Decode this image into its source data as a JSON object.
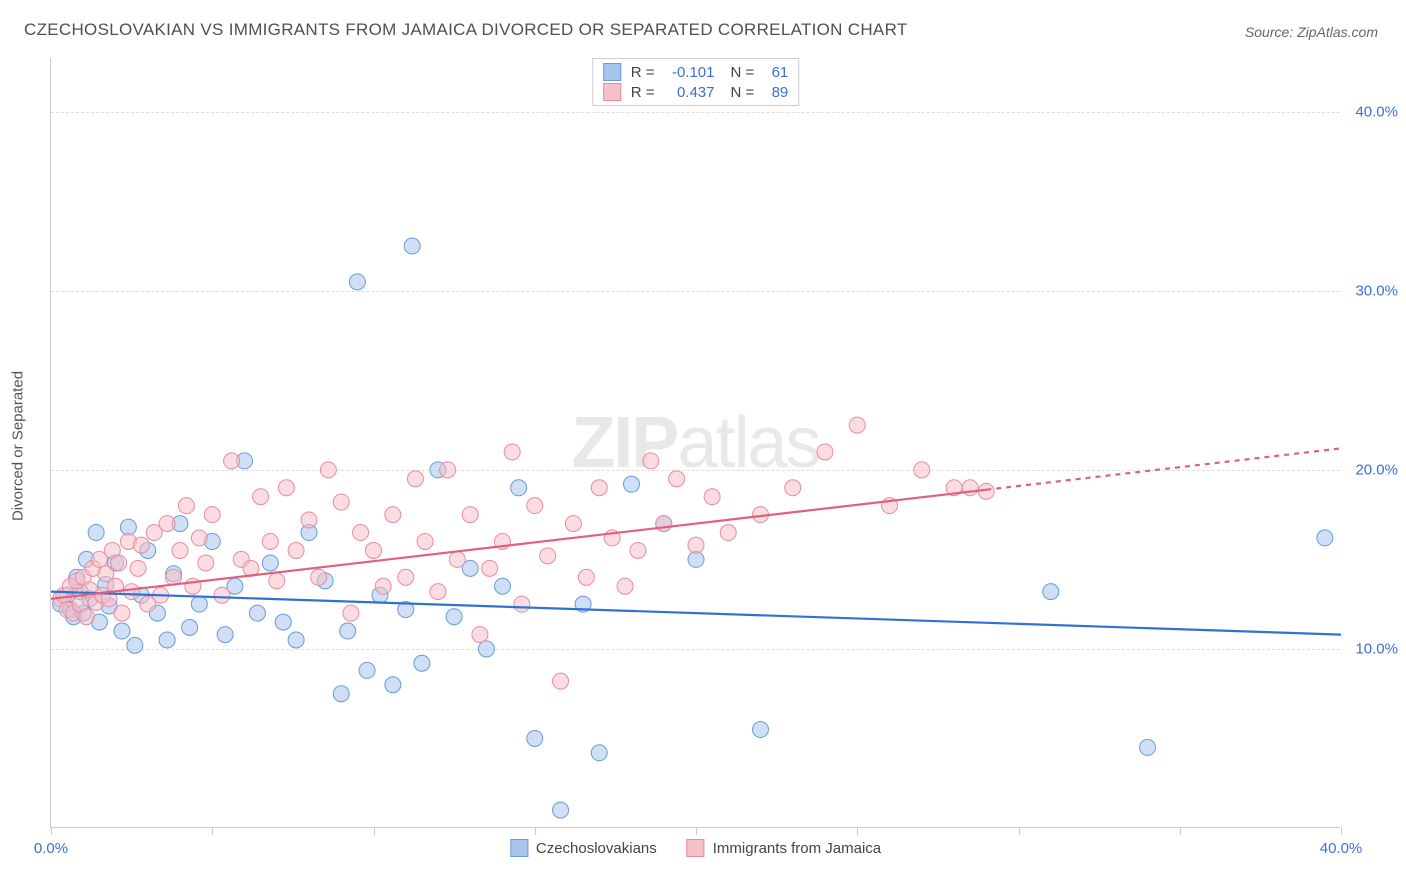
{
  "title": "CZECHOSLOVAKIAN VS IMMIGRANTS FROM JAMAICA DIVORCED OR SEPARATED CORRELATION CHART",
  "source": "Source: ZipAtlas.com",
  "watermark": {
    "bold": "ZIP",
    "light": "atlas"
  },
  "yaxis_label": "Divorced or Separated",
  "chart": {
    "type": "scatter",
    "xlim": [
      0,
      40
    ],
    "ylim": [
      0,
      43
    ],
    "xtick_positions": [
      0,
      5,
      10,
      15,
      20,
      25,
      30,
      35,
      40
    ],
    "xtick_labels": {
      "0": "0.0%",
      "40": "40.0%"
    },
    "gridlines_y": [
      10,
      20,
      30,
      40
    ],
    "ytick_labels": {
      "10": "10.0%",
      "20": "20.0%",
      "30": "30.0%",
      "40": "40.0%"
    },
    "background_color": "#ffffff",
    "grid_color": "#dddddd",
    "axis_color": "#cccccc",
    "tick_label_color": "#3b6fd6",
    "marker_radius": 8,
    "marker_opacity": 0.55,
    "series": [
      {
        "id": "czech",
        "name": "Czechoslovakians",
        "color_fill": "#a8c5ed",
        "color_stroke": "#6a9bd8",
        "R": "-0.101",
        "N": "61",
        "trend": {
          "x1": 0,
          "y1": 13.2,
          "x2": 40,
          "y2": 10.8,
          "color": "#2f72d6",
          "width": 2.2,
          "solid_until_x": 40
        },
        "points": [
          [
            0.3,
            12.5
          ],
          [
            0.5,
            13.0
          ],
          [
            0.6,
            12.2
          ],
          [
            0.7,
            11.8
          ],
          [
            0.8,
            14.0
          ],
          [
            0.9,
            13.2
          ],
          [
            1.0,
            12.0
          ],
          [
            1.1,
            15.0
          ],
          [
            1.2,
            12.8
          ],
          [
            1.4,
            16.5
          ],
          [
            1.5,
            11.5
          ],
          [
            1.7,
            13.6
          ],
          [
            1.8,
            12.4
          ],
          [
            2.0,
            14.8
          ],
          [
            2.2,
            11.0
          ],
          [
            2.4,
            16.8
          ],
          [
            2.6,
            10.2
          ],
          [
            2.8,
            13.0
          ],
          [
            3.0,
            15.5
          ],
          [
            3.3,
            12.0
          ],
          [
            3.6,
            10.5
          ],
          [
            3.8,
            14.2
          ],
          [
            4.0,
            17.0
          ],
          [
            4.3,
            11.2
          ],
          [
            4.6,
            12.5
          ],
          [
            5.0,
            16.0
          ],
          [
            5.4,
            10.8
          ],
          [
            5.7,
            13.5
          ],
          [
            6.0,
            20.5
          ],
          [
            6.4,
            12.0
          ],
          [
            6.8,
            14.8
          ],
          [
            7.2,
            11.5
          ],
          [
            7.6,
            10.5
          ],
          [
            8.0,
            16.5
          ],
          [
            8.5,
            13.8
          ],
          [
            9.0,
            7.5
          ],
          [
            9.2,
            11.0
          ],
          [
            9.5,
            30.5
          ],
          [
            9.8,
            8.8
          ],
          [
            10.2,
            13.0
          ],
          [
            10.6,
            8.0
          ],
          [
            11.0,
            12.2
          ],
          [
            11.2,
            32.5
          ],
          [
            11.5,
            9.2
          ],
          [
            12.0,
            20.0
          ],
          [
            12.5,
            11.8
          ],
          [
            13.0,
            14.5
          ],
          [
            13.5,
            10.0
          ],
          [
            14.0,
            13.5
          ],
          [
            14.5,
            19.0
          ],
          [
            15.0,
            5.0
          ],
          [
            15.8,
            1.0
          ],
          [
            16.5,
            12.5
          ],
          [
            17.0,
            4.2
          ],
          [
            18.0,
            19.2
          ],
          [
            19.0,
            17.0
          ],
          [
            22.0,
            5.5
          ],
          [
            31.0,
            13.2
          ],
          [
            34.0,
            4.5
          ],
          [
            39.5,
            16.2
          ],
          [
            20.0,
            15.0
          ]
        ]
      },
      {
        "id": "jamaica",
        "name": "Immigrants from Jamaica",
        "color_fill": "#f5c0c9",
        "color_stroke": "#e88ca0",
        "R": "0.437",
        "N": "89",
        "trend": {
          "x1": 0,
          "y1": 12.8,
          "x2": 40,
          "y2": 21.2,
          "color": "#e0607e",
          "width": 2.2,
          "solid_until_x": 29
        },
        "points": [
          [
            0.3,
            12.8
          ],
          [
            0.4,
            13.0
          ],
          [
            0.5,
            12.2
          ],
          [
            0.6,
            13.5
          ],
          [
            0.7,
            12.0
          ],
          [
            0.8,
            13.8
          ],
          [
            0.9,
            12.5
          ],
          [
            1.0,
            14.0
          ],
          [
            1.1,
            11.8
          ],
          [
            1.2,
            13.3
          ],
          [
            1.3,
            14.5
          ],
          [
            1.4,
            12.6
          ],
          [
            1.5,
            15.0
          ],
          [
            1.6,
            13.0
          ],
          [
            1.7,
            14.2
          ],
          [
            1.8,
            12.8
          ],
          [
            1.9,
            15.5
          ],
          [
            2.0,
            13.5
          ],
          [
            2.1,
            14.8
          ],
          [
            2.2,
            12.0
          ],
          [
            2.4,
            16.0
          ],
          [
            2.5,
            13.2
          ],
          [
            2.7,
            14.5
          ],
          [
            2.8,
            15.8
          ],
          [
            3.0,
            12.5
          ],
          [
            3.2,
            16.5
          ],
          [
            3.4,
            13.0
          ],
          [
            3.6,
            17.0
          ],
          [
            3.8,
            14.0
          ],
          [
            4.0,
            15.5
          ],
          [
            4.2,
            18.0
          ],
          [
            4.4,
            13.5
          ],
          [
            4.6,
            16.2
          ],
          [
            4.8,
            14.8
          ],
          [
            5.0,
            17.5
          ],
          [
            5.3,
            13.0
          ],
          [
            5.6,
            20.5
          ],
          [
            5.9,
            15.0
          ],
          [
            6.2,
            14.5
          ],
          [
            6.5,
            18.5
          ],
          [
            6.8,
            16.0
          ],
          [
            7.0,
            13.8
          ],
          [
            7.3,
            19.0
          ],
          [
            7.6,
            15.5
          ],
          [
            8.0,
            17.2
          ],
          [
            8.3,
            14.0
          ],
          [
            8.6,
            20.0
          ],
          [
            9.0,
            18.2
          ],
          [
            9.3,
            12.0
          ],
          [
            9.6,
            16.5
          ],
          [
            10.0,
            15.5
          ],
          [
            10.3,
            13.5
          ],
          [
            10.6,
            17.5
          ],
          [
            11.0,
            14.0
          ],
          [
            11.3,
            19.5
          ],
          [
            11.6,
            16.0
          ],
          [
            12.0,
            13.2
          ],
          [
            12.3,
            20.0
          ],
          [
            12.6,
            15.0
          ],
          [
            13.0,
            17.5
          ],
          [
            13.3,
            10.8
          ],
          [
            13.6,
            14.5
          ],
          [
            14.0,
            16.0
          ],
          [
            14.3,
            21.0
          ],
          [
            14.6,
            12.5
          ],
          [
            15.0,
            18.0
          ],
          [
            15.4,
            15.2
          ],
          [
            15.8,
            8.2
          ],
          [
            16.2,
            17.0
          ],
          [
            16.6,
            14.0
          ],
          [
            17.0,
            19.0
          ],
          [
            17.4,
            16.2
          ],
          [
            17.8,
            13.5
          ],
          [
            18.2,
            15.5
          ],
          [
            18.6,
            20.5
          ],
          [
            19.0,
            17.0
          ],
          [
            19.4,
            19.5
          ],
          [
            20.0,
            15.8
          ],
          [
            20.5,
            18.5
          ],
          [
            21.0,
            16.5
          ],
          [
            22.0,
            17.5
          ],
          [
            23.0,
            19.0
          ],
          [
            24.0,
            21.0
          ],
          [
            25.0,
            22.5
          ],
          [
            26.0,
            18.0
          ],
          [
            27.0,
            20.0
          ],
          [
            28.0,
            19.0
          ],
          [
            28.5,
            19.0
          ],
          [
            29.0,
            18.8
          ]
        ]
      }
    ]
  }
}
